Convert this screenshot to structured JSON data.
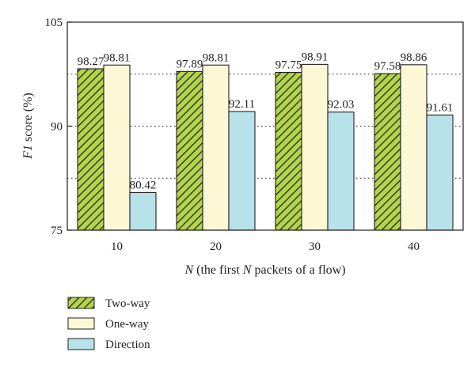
{
  "chart_data": {
    "type": "bar",
    "categories": [
      "10",
      "20",
      "30",
      "40"
    ],
    "series": [
      {
        "name": "Two-way",
        "values": [
          98.27,
          97.89,
          97.75,
          97.58
        ],
        "color": "#b5d44a",
        "hatch": true
      },
      {
        "name": "One-way",
        "values": [
          98.81,
          98.81,
          98.91,
          98.86
        ],
        "color": "#fcf8d6",
        "hatch": false
      },
      {
        "name": "Direction",
        "values": [
          80.42,
          92.11,
          92.03,
          91.61
        ],
        "color": "#b8e2ea",
        "hatch": false
      }
    ],
    "data_labels": [
      [
        "98.27",
        "97.89",
        "97.75",
        "97.58"
      ],
      [
        "98.81",
        "98.81",
        "98.91",
        "98.86"
      ],
      [
        "80.42",
        "92.11",
        "92.03",
        "91.61"
      ]
    ],
    "ylim": [
      75,
      105
    ],
    "yticks": [
      "75",
      "90",
      "105"
    ],
    "ylabel_italic": "F1",
    "ylabel_rest": " score (%)",
    "xlabel_parts": [
      "N",
      " (the first ",
      "N",
      " packets of a flow)"
    ],
    "grid": "dotted-horizontal",
    "legend_position": "bottom-left"
  }
}
